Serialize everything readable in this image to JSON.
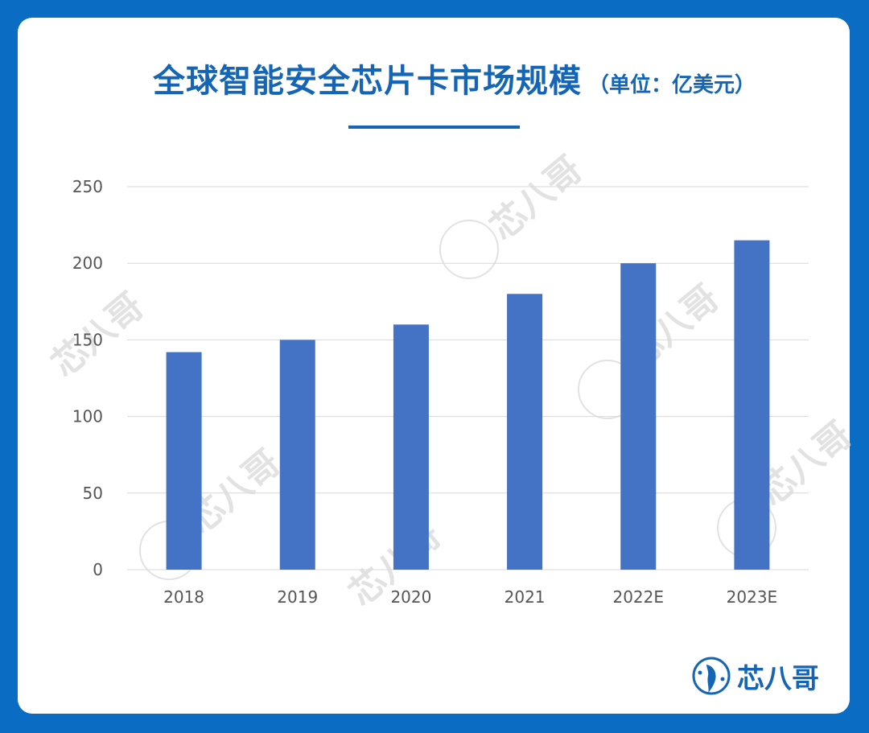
{
  "chart_data": {
    "type": "bar",
    "title": "全球智能安全芯片卡市场规模",
    "subtitle": "（单位：亿美元）",
    "categories": [
      "2018",
      "2019",
      "2020",
      "2021",
      "2022E",
      "2023E"
    ],
    "values": [
      142,
      150,
      160,
      180,
      200,
      215
    ],
    "ylim": [
      0,
      250
    ],
    "yticks": [
      "0",
      "50",
      "100",
      "150",
      "200",
      "250"
    ],
    "xlabel": "",
    "ylabel": "",
    "grid": true,
    "bar_color": "#4472c4"
  },
  "brand": {
    "name": "芯八哥",
    "watermark_text": "芯八哥"
  },
  "colors": {
    "background": "#0b6cc3",
    "card": "#ffffff",
    "accent": "#1565b6"
  }
}
